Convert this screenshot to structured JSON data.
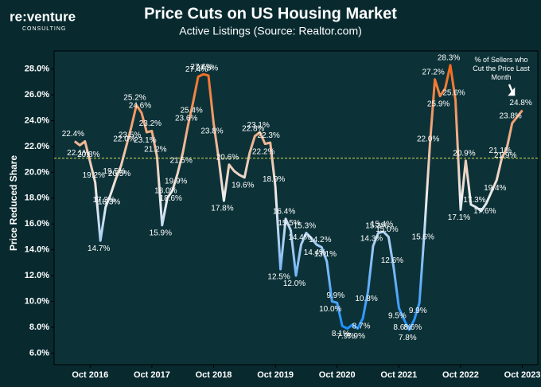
{
  "brand": {
    "name": "re:venture",
    "sub": "CONSULTING"
  },
  "chart_data": {
    "type": "line",
    "title": "Price Cuts on US Housing Market",
    "subtitle": "Active Listings (Source: Realtor.com)",
    "ylabel": "Price Reduced Share",
    "annotation": "% of Sellers who Cut the Price Last Month",
    "x": [
      "2016-07",
      "2016-08",
      "2016-09",
      "2016-10",
      "2016-11",
      "2016-12",
      "2017-01",
      "2017-02",
      "2017-03",
      "2017-04",
      "2017-05",
      "2017-06",
      "2017-07",
      "2017-08",
      "2017-09",
      "2017-10",
      "2017-11",
      "2017-12",
      "2018-01",
      "2018-02",
      "2018-03",
      "2018-04",
      "2018-05",
      "2018-06",
      "2018-07",
      "2018-08",
      "2018-09",
      "2018-10",
      "2018-11",
      "2018-12",
      "2019-01",
      "2019-02",
      "2019-03",
      "2019-04",
      "2019-05",
      "2019-06",
      "2019-07",
      "2019-08",
      "2019-09",
      "2019-10",
      "2019-11",
      "2019-12",
      "2020-01",
      "2020-02",
      "2020-03",
      "2020-04",
      "2020-05",
      "2020-06",
      "2020-07",
      "2020-08",
      "2020-09",
      "2020-10",
      "2020-11",
      "2020-12",
      "2021-01",
      "2021-02",
      "2021-03",
      "2021-04",
      "2021-05",
      "2021-06",
      "2021-07",
      "2021-08",
      "2021-09",
      "2021-10",
      "2021-11",
      "2021-12",
      "2022-01",
      "2022-02",
      "2022-03",
      "2022-04",
      "2022-05",
      "2022-06",
      "2022-07",
      "2022-08",
      "2022-09",
      "2022-10",
      "2022-11",
      "2022-12",
      "2023-01",
      "2023-02",
      "2023-03",
      "2023-04",
      "2023-05",
      "2023-06",
      "2023-07",
      "2023-08",
      "2023-09",
      "2023-10"
    ],
    "values": [
      22.4,
      22.1,
      22.4,
      20.8,
      19.2,
      14.7,
      17.3,
      18.3,
      19.5,
      20.5,
      22.0,
      23.5,
      25.2,
      24.6,
      23.1,
      23.2,
      21.2,
      15.9,
      18.0,
      18.6,
      19.9,
      21.5,
      23.6,
      25.4,
      27.4,
      27.6,
      27.5,
      23.8,
      21.0,
      17.8,
      20.6,
      20.1,
      19.8,
      19.6,
      21.5,
      22.8,
      23.1,
      22.2,
      22.3,
      18.9,
      12.5,
      16.4,
      15.5,
      12.0,
      14.4,
      15.3,
      14.9,
      14.4,
      14.2,
      13.1,
      10.0,
      9.9,
      8.1,
      7.9,
      8.2,
      7.9,
      8.7,
      10.8,
      14.3,
      15.3,
      15.4,
      15.0,
      12.6,
      9.5,
      8.6,
      7.8,
      8.6,
      9.9,
      15.6,
      22.0,
      27.2,
      25.9,
      26.5,
      28.3,
      25.6,
      17.1,
      20.9,
      17.5,
      17.3,
      17.0,
      17.6,
      18.5,
      19.4,
      21.1,
      21.9,
      23.8,
      24.3,
      24.8
    ],
    "value_labels": [
      "22.4%",
      "22.1%",
      null,
      "20.8%",
      "19.2%",
      "14.7%",
      "17.3%",
      "18.3%",
      "19.5%",
      "20.5%",
      "22.0%",
      "23.5%",
      "25.2%",
      "24.6%",
      "23.1%",
      "23.2%",
      "21.2%",
      "15.9%",
      "18.0%",
      "18.6%",
      "19.9%",
      "21.5%",
      "23.6%",
      "25.4%",
      "27.4%",
      "27.6%",
      "27.5%",
      "23.8%",
      null,
      "17.8%",
      "20.6%",
      null,
      null,
      "19.6%",
      null,
      "22.8%",
      "23.1%",
      "22.2%",
      "22.3%",
      "18.9%",
      "12.5%",
      "16.4%",
      "15.5%",
      "12.0%",
      "14.4%",
      "15.3%",
      null,
      "14.4%",
      "14.2%",
      "13.1%",
      "10.0%",
      "9.9%",
      "8.1%",
      "7.9%",
      null,
      "7.9%",
      "8.7%",
      "10.8%",
      "14.3%",
      "15.3%",
      "15.4%",
      "15.0%",
      "12.6%",
      "9.5%",
      "8.6%",
      "7.8%",
      "8.6%",
      "9.9%",
      "15.6%",
      "22.0%",
      "27.2%",
      "25.9%",
      null,
      "28.3%",
      "25.6%",
      "17.1%",
      "20.9%",
      null,
      "17.3%",
      null,
      "17.6%",
      null,
      "19.4%",
      "21.1%",
      "21.9%",
      "23.8%",
      null,
      "24.8%"
    ],
    "color_scale": [
      {
        "value": 8,
        "color": "#1e90ff"
      },
      {
        "value": 18,
        "color": "#eeeeee"
      },
      {
        "value": 28,
        "color": "#f26b1d"
      }
    ],
    "reference_line": {
      "value": 21.1,
      "color": "#d8d84a"
    },
    "xlim": [
      "2016-03",
      "2024-01"
    ],
    "xticks": [
      {
        "value": "2016-10",
        "label": "Oct 2016"
      },
      {
        "value": "2017-10",
        "label": "Oct 2017"
      },
      {
        "value": "2018-10",
        "label": "Oct 2018"
      },
      {
        "value": "2019-10",
        "label": "Oct 2019"
      },
      {
        "value": "2020-10",
        "label": "Oct 2020"
      },
      {
        "value": "2021-10",
        "label": "Oct 2021"
      },
      {
        "value": "2022-10",
        "label": "Oct 2022"
      },
      {
        "value": "2023-10",
        "label": "Oct 2023"
      }
    ],
    "ylim": [
      5.1,
      29.4
    ],
    "yticks": [
      {
        "value": 6,
        "label": "6.0%"
      },
      {
        "value": 8,
        "label": "8.0%"
      },
      {
        "value": 10,
        "label": "10.0%"
      },
      {
        "value": 12,
        "label": "12.0%"
      },
      {
        "value": 14,
        "label": "14.0%"
      },
      {
        "value": 16,
        "label": "16.0%"
      },
      {
        "value": 18,
        "label": "18.0%"
      },
      {
        "value": 20,
        "label": "20.0%"
      },
      {
        "value": 22,
        "label": "22.0%"
      },
      {
        "value": 24,
        "label": "24.0%"
      },
      {
        "value": 26,
        "label": "26.0%"
      },
      {
        "value": 28,
        "label": "28.0%"
      }
    ]
  }
}
